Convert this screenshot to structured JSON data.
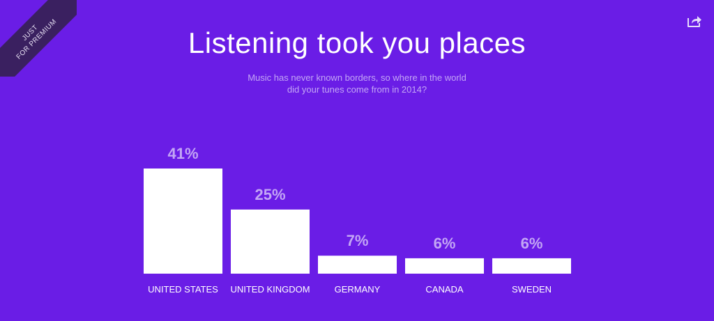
{
  "ribbon": {
    "line1": "JUST",
    "line2": "FOR PREMIUM"
  },
  "header": {
    "title": "Listening took you places",
    "subtitle_line1": "Music has never known borders, so where in the world",
    "subtitle_line2": "did your tunes come from in 2014?"
  },
  "share": {
    "icon": "share-icon"
  },
  "colors": {
    "background": "#6a1de6",
    "bar": "#ffffff",
    "value_label": "#c3a6f5",
    "ribbon": "#3a2060"
  },
  "chart_data": {
    "type": "bar",
    "categories": [
      "UNITED STATES",
      "UNITED KINGDOM",
      "GERMANY",
      "CANADA",
      "SWEDEN"
    ],
    "values": [
      41,
      25,
      7,
      6,
      6
    ],
    "value_labels": [
      "41%",
      "25%",
      "7%",
      "6%",
      "6%"
    ],
    "value_unit": "%",
    "grid": false,
    "legend": "none"
  }
}
